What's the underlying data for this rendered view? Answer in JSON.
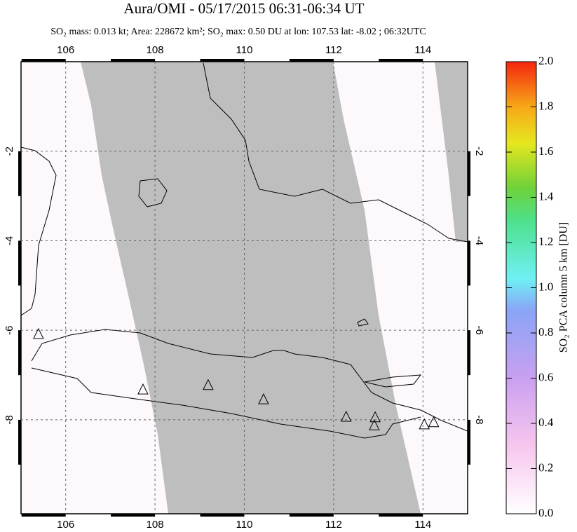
{
  "chart_data": {
    "type": "map",
    "title": "Aura/OMI - 05/17/2015 06:31-06:34 UT",
    "subtitle": "SO₂ mass: 0.013 kt; Area: 228672 km²; SO₂ max: 0.50 DU at lon: 107.53 lat: -8.02 ; 06:32UTC",
    "xlim": [
      105,
      115
    ],
    "ylim": [
      -10.1,
      0
    ],
    "xticks": [
      106,
      108,
      110,
      112,
      114
    ],
    "yticks": [
      -2,
      -4,
      -6,
      -8
    ],
    "grid": true,
    "volcanoes": {
      "x": [
        105.39,
        107.73,
        109.19,
        110.43,
        112.28,
        112.93,
        112.91,
        114.03,
        114.24
      ],
      "y": [
        -6.09,
        -7.33,
        -7.23,
        -7.55,
        -7.94,
        -7.95,
        -8.13,
        -8.11,
        -8.06
      ]
    },
    "colorbar": {
      "label": "SO₂ PCA column 5 km [DU]",
      "lim": [
        0,
        2
      ],
      "ticks": [
        {
          "value": 0,
          "label": "0.0"
        },
        {
          "value": 0.2,
          "label": "0.2"
        },
        {
          "value": 0.4,
          "label": "0.4"
        },
        {
          "value": 0.6,
          "label": "0.6"
        },
        {
          "value": 0.8,
          "label": "0.8"
        },
        {
          "value": 1,
          "label": "1.0"
        },
        {
          "value": 1.2,
          "label": "1.2"
        },
        {
          "value": 1.4,
          "label": "1.4"
        },
        {
          "value": 1.6,
          "label": "1.6"
        },
        {
          "value": 1.8,
          "label": "1.8"
        },
        {
          "value": 2,
          "label": "2.0"
        }
      ]
    }
  }
}
